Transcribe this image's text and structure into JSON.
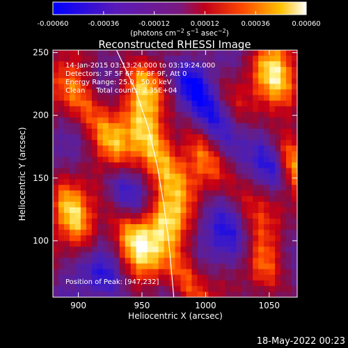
{
  "colorbar": {
    "tick_labels": [
      "-0.00060",
      "-0.00036",
      "-0.00012",
      "0.00012",
      "0.00036",
      "0.00060"
    ],
    "tick_values": [
      -0.0006,
      -0.00036,
      -0.00012,
      0.00012,
      0.00036,
      0.0006
    ],
    "range": [
      -0.0006,
      0.0006
    ]
  },
  "chart_data": {
    "type": "heatmap",
    "title": "Reconstructed RHESSI Image",
    "xlabel": "Heliocentric X (arcsec)",
    "ylabel": "Heliocentric Y (arcsec)",
    "xlim": [
      880,
      1072
    ],
    "ylim": [
      55,
      252
    ],
    "x_ticks": [
      900,
      950,
      1000,
      1050
    ],
    "y_ticks": [
      100,
      150,
      200,
      250
    ],
    "annotations": [
      "14-Jan-2015 03:13:24.000 to 03:19:24.000",
      "Detectors: 3F 5F 6F 7F 8F 9F, Att 0",
      "Energy Range: 25.0 - 50.0 keV",
      "Clean     Total counts: 2.35E+04"
    ],
    "peak_label": "Position of Peak: [947,232]",
    "peak_position": [
      947,
      232
    ],
    "limb_points": [
      [
        930,
        252
      ],
      [
        945,
        220
      ],
      [
        955,
        190
      ],
      [
        962,
        160
      ],
      [
        967,
        130
      ],
      [
        971,
        100
      ],
      [
        975,
        55
      ]
    ]
  },
  "footer": {
    "date": "18-May-2022 00:23"
  }
}
